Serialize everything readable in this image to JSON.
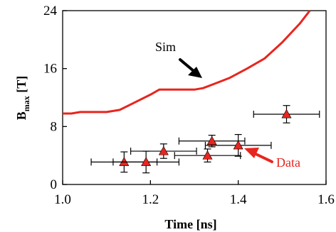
{
  "chart_data": {
    "type": "scatter",
    "xlabel": "Time [ns]",
    "ylabel_main": "B",
    "ylabel_sub": "max",
    "ylabel_unit": " [T]",
    "xlim": [
      1.0,
      1.6
    ],
    "ylim": [
      0,
      24
    ],
    "xticks": [
      1.0,
      1.2,
      1.4,
      1.6
    ],
    "xtick_labels": [
      "1.0",
      "1.2",
      "1.4",
      "1.6"
    ],
    "yticks": [
      0,
      8,
      16,
      24
    ],
    "ytick_labels": [
      "0",
      "8",
      "16",
      "24"
    ],
    "grid": false,
    "series": [
      {
        "name": "Sim",
        "kind": "line",
        "color": "#e8251e",
        "x": [
          1.0,
          1.02,
          1.04,
          1.1,
          1.13,
          1.16,
          1.2,
          1.22,
          1.3,
          1.32,
          1.35,
          1.38,
          1.42,
          1.46,
          1.5,
          1.54,
          1.563
        ],
        "y": [
          9.8,
          9.8,
          10.0,
          10.0,
          10.3,
          11.2,
          12.4,
          13.1,
          13.1,
          13.3,
          14.0,
          14.7,
          16.0,
          17.4,
          19.6,
          22.2,
          24.0
        ]
      },
      {
        "name": "Data",
        "kind": "scatter",
        "marker": "triangle",
        "color": "#e8251e",
        "points": [
          {
            "x": 1.14,
            "y": 3.1,
            "xerr": 0.075,
            "yerr": 1.4
          },
          {
            "x": 1.19,
            "y": 3.1,
            "xerr": 0.075,
            "yerr": 1.5
          },
          {
            "x": 1.23,
            "y": 4.6,
            "xerr": 0.075,
            "yerr": 1.0
          },
          {
            "x": 1.33,
            "y": 4.0,
            "xerr": 0.075,
            "yerr": 0.9
          },
          {
            "x": 1.34,
            "y": 6.0,
            "xerr": 0.075,
            "yerr": 0.8
          },
          {
            "x": 1.4,
            "y": 5.4,
            "xerr": 0.075,
            "yerr": 1.5
          },
          {
            "x": 1.51,
            "y": 9.7,
            "xerr": 0.075,
            "yerr": 1.2
          }
        ]
      }
    ],
    "annotations": [
      {
        "text": "Sim",
        "color": "#000000"
      },
      {
        "text": "Data",
        "color": "#e8251e"
      }
    ]
  }
}
